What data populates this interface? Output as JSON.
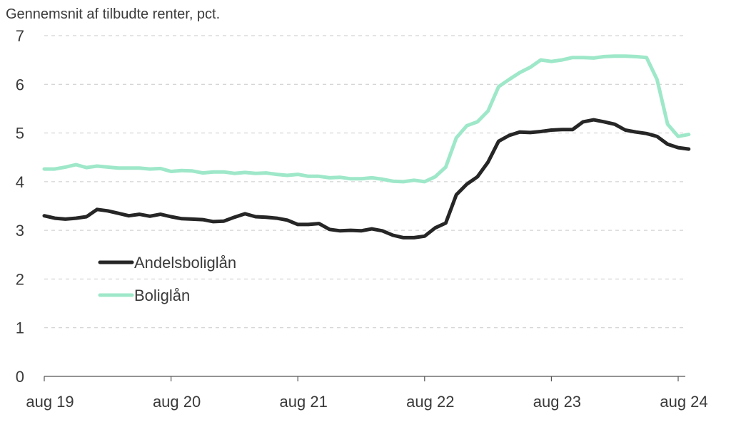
{
  "chart_data": {
    "type": "line",
    "subtitle": "Gennemsnit af tilbudte renter, pct.",
    "ylim": [
      0,
      7
    ],
    "yticks": [
      0,
      1,
      2,
      3,
      4,
      5,
      6,
      7
    ],
    "xticks": [
      {
        "label": "aug 19",
        "month_index": 0
      },
      {
        "label": "aug 20",
        "month_index": 12
      },
      {
        "label": "aug 21",
        "month_index": 24
      },
      {
        "label": "aug 22",
        "month_index": 36
      },
      {
        "label": "aug 23",
        "month_index": 48
      },
      {
        "label": "aug 24",
        "month_index": 60
      }
    ],
    "grid": true,
    "legend_position": "lower-left",
    "series": [
      {
        "name": "Andelsboliglån",
        "color": "#262626",
        "values": [
          3.3,
          3.25,
          3.23,
          3.25,
          3.28,
          3.43,
          3.4,
          3.35,
          3.3,
          3.33,
          3.29,
          3.33,
          3.28,
          3.24,
          3.23,
          3.22,
          3.18,
          3.19,
          3.27,
          3.34,
          3.28,
          3.27,
          3.25,
          3.21,
          3.12,
          3.12,
          3.14,
          3.02,
          2.99,
          3.0,
          2.99,
          3.03,
          2.99,
          2.9,
          2.85,
          2.85,
          2.88,
          3.05,
          3.15,
          3.73,
          3.95,
          4.1,
          4.4,
          4.83,
          4.95,
          5.02,
          5.01,
          5.03,
          5.06,
          5.07,
          5.07,
          5.23,
          5.27,
          5.23,
          5.18,
          5.06,
          5.02,
          4.99,
          4.93,
          4.77,
          4.7,
          4.67
        ]
      },
      {
        "name": "Boliglån",
        "color": "#9ee8c9",
        "values": [
          4.26,
          4.26,
          4.3,
          4.35,
          4.29,
          4.32,
          4.3,
          4.28,
          4.28,
          4.28,
          4.26,
          4.27,
          4.21,
          4.23,
          4.22,
          4.18,
          4.2,
          4.2,
          4.17,
          4.19,
          4.17,
          4.18,
          4.15,
          4.13,
          4.15,
          4.11,
          4.11,
          4.08,
          4.09,
          4.06,
          4.06,
          4.08,
          4.05,
          4.01,
          4.0,
          4.03,
          4.0,
          4.1,
          4.3,
          4.9,
          5.15,
          5.23,
          5.45,
          5.95,
          6.1,
          6.24,
          6.35,
          6.5,
          6.47,
          6.5,
          6.55,
          6.55,
          6.54,
          6.57,
          6.58,
          6.58,
          6.57,
          6.55,
          6.1,
          5.18,
          4.93,
          4.97
        ]
      }
    ]
  }
}
